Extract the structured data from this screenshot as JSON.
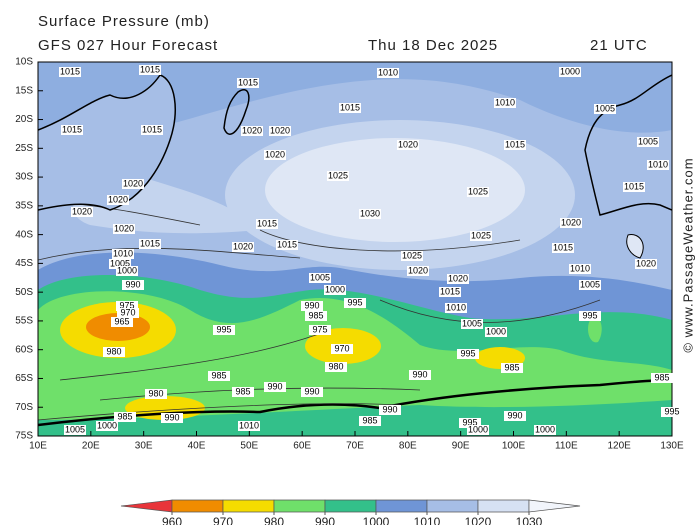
{
  "header": {
    "title": "Surface Pressure (mb)",
    "subtitle": "GFS 027 Hour Forecast",
    "date": "Thu 18 Dec 2025",
    "time": "21 UTC"
  },
  "map": {
    "lat_labels": [
      "10S",
      "15S",
      "20S",
      "25S",
      "30S",
      "35S",
      "40S",
      "45S",
      "50S",
      "55S",
      "60S",
      "65S",
      "70S",
      "75S"
    ],
    "lon_labels": [
      "10E",
      "20E",
      "30E",
      "40E",
      "50E",
      "60E",
      "70E",
      "80E",
      "90E",
      "100E",
      "110E",
      "120E",
      "130E"
    ],
    "contour_labels": [
      1015,
      1015,
      1015,
      1010,
      1000,
      1010,
      1005,
      1015,
      1020,
      1015,
      1015,
      1020,
      1020,
      1015,
      1005,
      1020,
      1010,
      1025,
      1025,
      1015,
      1020,
      1020,
      1020,
      1030,
      1015,
      1020,
      1020,
      1025,
      1015,
      1020,
      1015,
      1025,
      1015,
      1020,
      1010,
      1005,
      1000,
      1020,
      1020,
      1010,
      1005,
      990,
      1015,
      1000,
      1005,
      995,
      1010,
      990,
      975,
      970,
      965,
      985,
      995,
      1005,
      1000,
      995,
      975,
      970,
      995,
      985,
      980,
      985,
      980,
      990,
      980,
      985,
      990,
      990,
      985,
      990,
      995,
      990,
      1000,
      1000,
      995,
      985,
      990,
      1010,
      1005,
      1000,
      985
    ]
  },
  "legend": {
    "levels": [
      960,
      970,
      980,
      990,
      1000,
      1010,
      1020,
      1030
    ],
    "colors": [
      "#e8353a",
      "#f08c00",
      "#f5dc00",
      "#6fe06a",
      "#33c08a",
      "#6f95d6",
      "#a6bee6",
      "#d6e1f3",
      "#f2f5fb"
    ]
  },
  "watermark": "© www.PassageWeather.com"
}
